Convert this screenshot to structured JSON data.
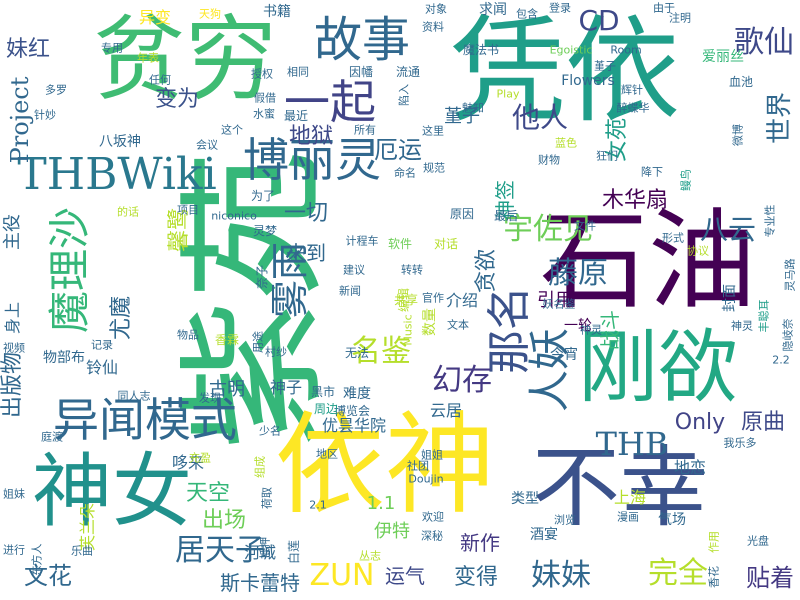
{
  "words": [
    {
      "text": "紫苑",
      "color": "#35b779"
    },
    {
      "text": "凭依",
      "color": "#1f9e89"
    },
    {
      "text": "依神",
      "color": "#fde725"
    },
    {
      "text": "贫穷",
      "color": "#3fbc73"
    },
    {
      "text": "石油",
      "color": "#440154"
    },
    {
      "text": "不幸",
      "color": "#3b528b"
    },
    {
      "text": "刚欲",
      "color": "#22a884"
    },
    {
      "text": "神女",
      "color": "#21918c"
    },
    {
      "text": "THBWiki",
      "color": "#2a788e"
    },
    {
      "text": "博丽灵",
      "color": "#31688e"
    },
    {
      "text": "异闻模式",
      "color": "#31688e"
    },
    {
      "text": "故事",
      "color": "#31688e"
    },
    {
      "text": "一起",
      "color": "#414487"
    },
    {
      "text": "那名",
      "color": "#3b528b"
    },
    {
      "text": "魔理沙",
      "color": "#35b779"
    },
    {
      "text": "人妖",
      "color": "#31688e"
    },
    {
      "text": "雾雨",
      "color": "#31688e"
    },
    {
      "text": "宇佐见",
      "color": "#6ece58"
    },
    {
      "text": "藤原",
      "color": "#31688e"
    },
    {
      "text": "名鉴",
      "color": "#b5de2b"
    },
    {
      "text": "幻存",
      "color": "#443983"
    },
    {
      "text": "THB",
      "color": "#31688e"
    },
    {
      "text": "Only",
      "color": "#414487"
    },
    {
      "text": "原曲",
      "color": "#3e4989"
    },
    {
      "text": "居天子",
      "color": "#31688e"
    },
    {
      "text": "ZUN",
      "color": "#fde725"
    },
    {
      "text": "完全",
      "color": "#b5de2b"
    },
    {
      "text": "妹妹",
      "color": "#31688e"
    },
    {
      "text": "贴着",
      "color": "#443983"
    },
    {
      "text": "变得",
      "color": "#31688e"
    },
    {
      "text": "运气",
      "color": "#3e4989"
    },
    {
      "text": "文花",
      "color": "#31688e"
    },
    {
      "text": "斯卡蕾特",
      "color": "#31688e"
    },
    {
      "text": "新作",
      "color": "#443983"
    },
    {
      "text": "出场",
      "color": "#6ece58"
    },
    {
      "text": "天空",
      "color": "#35b779"
    },
    {
      "text": "歌仙",
      "color": "#3e4989"
    },
    {
      "text": "CD",
      "color": "#3e4989"
    },
    {
      "text": "厄运",
      "color": "#31688e"
    },
    {
      "text": "他人",
      "color": "#3e4989"
    },
    {
      "text": "八云",
      "color": "#31688e"
    },
    {
      "text": "世界",
      "color": "#31688e"
    },
    {
      "text": "变为",
      "color": "#3b528b"
    },
    {
      "text": "地狱",
      "color": "#3e4989"
    },
    {
      "text": "Project",
      "color": "#31688e"
    },
    {
      "text": "妹红",
      "color": "#3b528b"
    },
    {
      "text": "贪欲",
      "color": "#31688e"
    },
    {
      "text": "尤魔",
      "color": "#31688e"
    },
    {
      "text": "出版物",
      "color": "#31688e"
    },
    {
      "text": "一切",
      "color": "#31688e"
    },
    {
      "text": "战斗",
      "color": "#35b779"
    },
    {
      "text": "女苑",
      "color": "#1f9e89"
    },
    {
      "text": "木华扇",
      "color": "#440154"
    },
    {
      "text": "神签",
      "color": "#1f9e89"
    },
    {
      "text": "来到",
      "color": "#31688e"
    },
    {
      "text": "引用",
      "color": "#440154"
    },
    {
      "text": "介绍",
      "color": "#31688e"
    },
    {
      "text": "堇子",
      "color": "#31688e"
    },
    {
      "text": "馨鹭",
      "color": "#b5de2b"
    },
    {
      "text": "1.1",
      "color": "#6ece58"
    },
    {
      "text": "伊特",
      "color": "#6ece58"
    },
    {
      "text": "河城",
      "color": "#31688e"
    },
    {
      "text": "古明",
      "color": "#31688e"
    },
    {
      "text": "神子",
      "color": "#31688e"
    },
    {
      "text": "云居",
      "color": "#31688e"
    },
    {
      "text": "今宵",
      "color": "#31688e"
    },
    {
      "text": "一轮",
      "color": "#440154"
    },
    {
      "text": "地恋",
      "color": "#31688e"
    },
    {
      "text": "哆来",
      "color": "#31688e"
    },
    {
      "text": "铃仙",
      "color": "#31688e"
    },
    {
      "text": "优昙华院",
      "color": "#31688e"
    },
    {
      "text": "类型",
      "color": "#31688e"
    },
    {
      "text": "上海",
      "color": "#b5de2b"
    },
    {
      "text": "气场",
      "color": "#31688e"
    },
    {
      "text": "酒宴",
      "color": "#31688e"
    },
    {
      "text": "主役",
      "color": "#31688e"
    },
    {
      "text": "身上",
      "color": "#31688e"
    },
    {
      "text": "异变",
      "color": "#fde725"
    },
    {
      "text": "书籍",
      "color": "#31688e"
    },
    {
      "text": "求闻",
      "color": "#31688e"
    },
    {
      "text": "最后",
      "color": "#31688e"
    },
    {
      "text": "最近",
      "color": "#31688e"
    },
    {
      "text": "因幡",
      "color": "#31688e"
    },
    {
      "text": "流通",
      "color": "#31688e"
    },
    {
      "text": "魔法书",
      "color": "#31688e"
    },
    {
      "text": "爱丽丝",
      "color": "#35b779"
    },
    {
      "text": "血池",
      "color": "#31688e"
    },
    {
      "text": "八坂神",
      "color": "#31688e"
    },
    {
      "text": "Egoistic",
      "color": "#6ece58"
    },
    {
      "text": "Room",
      "color": "#31688e"
    },
    {
      "text": "Flowers",
      "color": "#31688e"
    },
    {
      "text": "难度",
      "color": "#31688e"
    },
    {
      "text": "博览会",
      "color": "#31688e"
    },
    {
      "text": "黑市",
      "color": "#31688e"
    },
    {
      "text": "周边",
      "color": "#1f9e89"
    },
    {
      "text": "无法",
      "color": "#31688e"
    },
    {
      "text": "共享",
      "color": "#b5de2b"
    },
    {
      "text": "软件",
      "color": "#6ece58"
    },
    {
      "text": "对话",
      "color": "#b5de2b"
    },
    {
      "text": "官作",
      "color": "#31688e"
    },
    {
      "text": "文本",
      "color": "#31688e"
    },
    {
      "text": "妖名鉴",
      "color": "#31688e"
    },
    {
      "text": "神灵",
      "color": "#31688e"
    },
    {
      "text": "降下",
      "color": "#31688e"
    },
    {
      "text": "狂们",
      "color": "#31688e"
    },
    {
      "text": "财物",
      "color": "#31688e"
    },
    {
      "text": "文件",
      "color": "#31688e"
    },
    {
      "text": "形式",
      "color": "#31688e"
    },
    {
      "text": "专业性",
      "color": "#31688e"
    },
    {
      "text": "灵马路",
      "color": "#31688e"
    },
    {
      "text": "隐岐奈",
      "color": "#31688e"
    },
    {
      "text": "2.2",
      "color": "#31688e"
    },
    {
      "text": "我乐多",
      "color": "#31688e"
    },
    {
      "text": "光盘",
      "color": "#31688e"
    },
    {
      "text": "作用",
      "color": "#b5de2b"
    },
    {
      "text": "香花",
      "color": "#31688e"
    },
    {
      "text": "漫画",
      "color": "#31688e"
    },
    {
      "text": "浏览",
      "color": "#31688e"
    },
    {
      "text": "深秘",
      "color": "#31688e"
    },
    {
      "text": "欢迎",
      "color": "#31688e"
    },
    {
      "text": "丛志",
      "color": "#b5de2b"
    },
    {
      "text": "白莲",
      "color": "#31688e"
    },
    {
      "text": "2.1",
      "color": "#31688e"
    },
    {
      "text": "姐姐",
      "color": "#31688e"
    },
    {
      "text": "社团",
      "color": "#31688e"
    },
    {
      "text": "Doujin",
      "color": "#31688e"
    },
    {
      "text": "地区",
      "color": "#31688e"
    },
    {
      "text": "荷取",
      "color": "#31688e"
    },
    {
      "text": "抵押",
      "color": "#31688e"
    },
    {
      "text": "芙兰朵",
      "color": "#b5de2b"
    },
    {
      "text": "东方人",
      "color": "#31688e"
    },
    {
      "text": "乐曲",
      "color": "#31688e"
    },
    {
      "text": "进行",
      "color": "#31688e"
    },
    {
      "text": "姐妹",
      "color": "#31688e"
    },
    {
      "text": "庭渡",
      "color": "#31688e"
    },
    {
      "text": "视频",
      "color": "#31688e"
    },
    {
      "text": "同人志",
      "color": "#31688e"
    },
    {
      "text": "物部布",
      "color": "#31688e"
    },
    {
      "text": "发现",
      "color": "#31688e"
    },
    {
      "text": "少名",
      "color": "#31688e"
    },
    {
      "text": "组成",
      "color": "#b5de2b"
    },
    {
      "text": "充盈",
      "color": "#b5de2b"
    },
    {
      "text": "村纱",
      "color": "#31688e"
    },
    {
      "text": "用途",
      "color": "#31688e"
    },
    {
      "text": "香霖",
      "color": "#b5de2b"
    },
    {
      "text": "物品",
      "color": "#31688e"
    },
    {
      "text": "奈子",
      "color": "#31688e"
    },
    {
      "text": "项目",
      "color": "#31688e"
    },
    {
      "text": "记录",
      "color": "#31688e"
    },
    {
      "text": "的话",
      "color": "#b5de2b"
    },
    {
      "text": "会议",
      "color": "#31688e"
    },
    {
      "text": "这个",
      "color": "#31688e"
    },
    {
      "text": "为了",
      "color": "#31688e"
    },
    {
      "text": "niconico",
      "color": "#31688e"
    },
    {
      "text": "灵梦",
      "color": "#31688e"
    },
    {
      "text": "计程车",
      "color": "#31688e"
    },
    {
      "text": "建议",
      "color": "#31688e"
    },
    {
      "text": "新闻",
      "color": "#31688e"
    },
    {
      "text": "转转",
      "color": "#31688e"
    },
    {
      "text": "编辑",
      "color": "#b5de2b"
    },
    {
      "text": "数量",
      "color": "#b5de2b"
    },
    {
      "text": "Music",
      "color": "#b5de2b"
    },
    {
      "text": "协议",
      "color": "#b5de2b"
    },
    {
      "text": "神灵",
      "color": "#31688e"
    },
    {
      "text": "丰聪耳",
      "color": "#1f9e89"
    },
    {
      "text": "封面",
      "color": "#31688e"
    },
    {
      "text": "命名",
      "color": "#31688e"
    },
    {
      "text": "这里",
      "color": "#31688e"
    },
    {
      "text": "蓝色",
      "color": "#b5de2b"
    },
    {
      "text": "规范",
      "color": "#31688e"
    },
    {
      "text": "魅知",
      "color": "#31688e"
    },
    {
      "text": "所有",
      "color": "#31688e"
    },
    {
      "text": "Play",
      "color": "#b5de2b"
    },
    {
      "text": "陷入",
      "color": "#31688e"
    },
    {
      "text": "堇子",
      "color": "#31688e"
    },
    {
      "text": "原因",
      "color": "#31688e"
    },
    {
      "text": "辉针",
      "color": "#31688e"
    },
    {
      "text": "醉蝶华",
      "color": "#31688e"
    },
    {
      "text": "鳗鸟",
      "color": "#1f9e89"
    },
    {
      "text": "微博",
      "color": "#31688e"
    },
    {
      "text": "注明",
      "color": "#31688e"
    },
    {
      "text": "由于",
      "color": "#31688e"
    },
    {
      "text": "登录",
      "color": "#31688e"
    },
    {
      "text": "包含",
      "color": "#31688e"
    },
    {
      "text": "对象",
      "color": "#31688e"
    },
    {
      "text": "资料",
      "color": "#31688e"
    },
    {
      "text": "天狗",
      "color": "#fde725"
    },
    {
      "text": "相同",
      "color": "#31688e"
    },
    {
      "text": "专用",
      "color": "#31688e"
    },
    {
      "text": "年表",
      "color": "#b5de2b"
    },
    {
      "text": "授权",
      "color": "#31688e"
    },
    {
      "text": "任何",
      "color": "#31688e"
    },
    {
      "text": "假借",
      "color": "#31688e"
    },
    {
      "text": "水蜜",
      "color": "#31688e"
    },
    {
      "text": "多罗",
      "color": "#31688e"
    },
    {
      "text": "针妙",
      "color": "#31688e"
    }
  ]
}
